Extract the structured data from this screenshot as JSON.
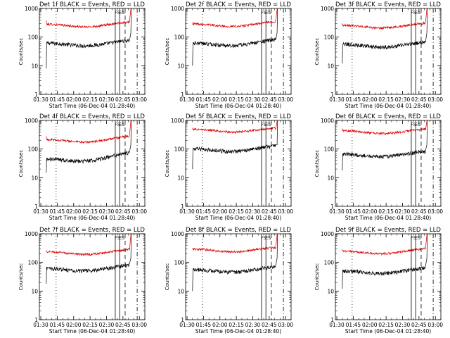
{
  "figure": {
    "background": "#ffffff",
    "events_color": "#000000",
    "lld_color": "#dd0000"
  },
  "chart_data": [
    {
      "type": "line",
      "title": "Det 1f BLACK = Events, RED = LLD",
      "xlabel": "Start Time (06-Dec-04 01:28:40)",
      "ylabel": "Counts/sec",
      "yscale": "log",
      "ylim": [
        1,
        1000
      ],
      "y_ticks": [
        "1",
        "10",
        "100",
        "1000"
      ],
      "x_ticks": [
        "01:30",
        "01:45",
        "02:00",
        "02:15",
        "02:30",
        "02:45",
        "03:00"
      ],
      "x_ticks_minutes": [
        90,
        105,
        120,
        135,
        150,
        165,
        180
      ],
      "xlim_minutes": [
        88.7,
        185
      ],
      "start_minutes": 95,
      "series": [
        {
          "name": "Events",
          "color": "black",
          "start_value": 8,
          "base": 55,
          "end": 70
        },
        {
          "name": "LLD",
          "color": "red",
          "start_value": 380,
          "base": 250,
          "end": 310
        }
      ],
      "markers": [
        {
          "style": "dotted",
          "minute": 104
        },
        {
          "style": "solid",
          "minute": 158
        },
        {
          "style": "solid",
          "minute": 162
        },
        {
          "style": "dashed",
          "minute": 167
        },
        {
          "style": "dashdot",
          "minute": 178
        }
      ],
      "annotations": [
        {
          "text": "FS",
          "minute": 160
        },
        {
          "text": "ES",
          "minute": 164
        }
      ]
    },
    {
      "type": "line",
      "title": "Det 2f BLACK = Events, RED = LLD",
      "xlabel": "Start Time (06-Dec-04 01:28:40)",
      "ylabel": "Counts/sec",
      "yscale": "log",
      "ylim": [
        1,
        1000
      ],
      "y_ticks": [
        "1",
        "10",
        "100",
        "1000"
      ],
      "x_ticks": [
        "01:30",
        "01:45",
        "02:00",
        "02:15",
        "02:30",
        "02:45",
        "03:00"
      ],
      "x_ticks_minutes": [
        90,
        105,
        120,
        135,
        150,
        165,
        180
      ],
      "xlim_minutes": [
        88.7,
        185
      ],
      "start_minutes": 95,
      "series": [
        {
          "name": "Events",
          "color": "black",
          "start_value": 10,
          "base": 55,
          "end": 75
        },
        {
          "name": "LLD",
          "color": "red",
          "start_value": 330,
          "base": 260,
          "end": 320
        }
      ],
      "markers": [
        {
          "style": "dotted",
          "minute": 104
        },
        {
          "style": "solid",
          "minute": 158
        },
        {
          "style": "solid",
          "minute": 162
        },
        {
          "style": "dashed",
          "minute": 167
        },
        {
          "style": "dashdot",
          "minute": 178
        }
      ],
      "annotations": [
        {
          "text": "FS",
          "minute": 160
        },
        {
          "text": "ES",
          "minute": 164
        }
      ]
    },
    {
      "type": "line",
      "title": "Det 3f BLACK = Events, RED = LLD",
      "xlabel": "Start Time (06-Dec-04 01:28:40)",
      "ylabel": "Counts/sec",
      "yscale": "log",
      "ylim": [
        1,
        1000
      ],
      "y_ticks": [
        "1",
        "10",
        "100",
        "1000"
      ],
      "x_ticks": [
        "01:30",
        "01:45",
        "02:00",
        "02:15",
        "02:30",
        "02:45",
        "03:00"
      ],
      "x_ticks_minutes": [
        90,
        105,
        120,
        135,
        150,
        165,
        180
      ],
      "xlim_minutes": [
        88.7,
        185
      ],
      "start_minutes": 95,
      "series": [
        {
          "name": "Events",
          "color": "black",
          "start_value": 12,
          "base": 50,
          "end": 60
        },
        {
          "name": "LLD",
          "color": "red",
          "start_value": 300,
          "base": 230,
          "end": 280
        }
      ],
      "markers": [
        {
          "style": "dotted",
          "minute": 104
        },
        {
          "style": "solid",
          "minute": 158
        },
        {
          "style": "solid",
          "minute": 162
        },
        {
          "style": "dashed",
          "minute": 167
        },
        {
          "style": "dashdot",
          "minute": 178
        }
      ],
      "annotations": [
        {
          "text": "FS",
          "minute": 160
        },
        {
          "text": "ES",
          "minute": 164
        }
      ]
    },
    {
      "type": "line",
      "title": "Det 4f BLACK = Events, RED = LLD",
      "xlabel": "Start Time (06-Dec-04 01:28:40)",
      "ylabel": "Counts/sec",
      "yscale": "log",
      "ylim": [
        1,
        1000
      ],
      "y_ticks": [
        "1",
        "10",
        "100",
        "1000"
      ],
      "x_ticks": [
        "01:30",
        "01:45",
        "02:00",
        "02:15",
        "02:30",
        "02:45",
        "03:00"
      ],
      "x_ticks_minutes": [
        90,
        105,
        120,
        135,
        150,
        165,
        180
      ],
      "xlim_minutes": [
        88.7,
        185
      ],
      "start_minutes": 95,
      "series": [
        {
          "name": "Events",
          "color": "black",
          "start_value": 15,
          "base": 40,
          "end": 70
        },
        {
          "name": "LLD",
          "color": "red",
          "start_value": 280,
          "base": 190,
          "end": 260
        }
      ],
      "markers": [
        {
          "style": "dotted",
          "minute": 104
        },
        {
          "style": "solid",
          "minute": 158
        },
        {
          "style": "solid",
          "minute": 162
        },
        {
          "style": "dashed",
          "minute": 167
        },
        {
          "style": "dashdot",
          "minute": 178
        }
      ],
      "annotations": [
        {
          "text": "FS",
          "minute": 160
        },
        {
          "text": "ES",
          "minute": 164
        }
      ]
    },
    {
      "type": "line",
      "title": "Det 5f BLACK = Events, RED = LLD",
      "xlabel": "Start Time (06-Dec-04 01:28:40)",
      "ylabel": "Counts/sec",
      "yscale": "log",
      "ylim": [
        1,
        1000
      ],
      "y_ticks": [
        "1",
        "10",
        "100",
        "1000"
      ],
      "x_ticks": [
        "01:30",
        "01:45",
        "02:00",
        "02:15",
        "02:30",
        "02:45",
        "03:00"
      ],
      "x_ticks_minutes": [
        90,
        105,
        120,
        135,
        150,
        165,
        180
      ],
      "xlim_minutes": [
        88.7,
        185
      ],
      "start_minutes": 95,
      "series": [
        {
          "name": "Events",
          "color": "black",
          "start_value": 20,
          "base": 90,
          "end": 120
        },
        {
          "name": "LLD",
          "color": "red",
          "start_value": 550,
          "base": 440,
          "end": 480
        }
      ],
      "markers": [
        {
          "style": "dotted",
          "minute": 104
        },
        {
          "style": "solid",
          "minute": 158
        },
        {
          "style": "solid",
          "minute": 162
        },
        {
          "style": "dashed",
          "minute": 167
        },
        {
          "style": "dashdot",
          "minute": 178
        }
      ],
      "annotations": [
        {
          "text": "FS",
          "minute": 160
        },
        {
          "text": "ES",
          "minute": 164
        }
      ]
    },
    {
      "type": "line",
      "title": "Det 6f BLACK = Events, RED = LLD",
      "xlabel": "Start Time (06-Dec-04 01:28:40)",
      "ylabel": "Counts/sec",
      "yscale": "log",
      "ylim": [
        1,
        1000
      ],
      "y_ticks": [
        "1",
        "10",
        "100",
        "1000"
      ],
      "x_ticks": [
        "01:30",
        "01:45",
        "02:00",
        "02:15",
        "02:30",
        "02:45",
        "03:00"
      ],
      "x_ticks_minutes": [
        90,
        105,
        120,
        135,
        150,
        165,
        180
      ],
      "xlim_minutes": [
        88.7,
        185
      ],
      "start_minutes": 95,
      "series": [
        {
          "name": "Events",
          "color": "black",
          "start_value": 18,
          "base": 60,
          "end": 75
        },
        {
          "name": "LLD",
          "color": "red",
          "start_value": 520,
          "base": 390,
          "end": 450
        }
      ],
      "markers": [
        {
          "style": "dotted",
          "minute": 104
        },
        {
          "style": "solid",
          "minute": 158
        },
        {
          "style": "solid",
          "minute": 162
        },
        {
          "style": "dashed",
          "minute": 167
        },
        {
          "style": "dashdot",
          "minute": 178
        }
      ],
      "annotations": [
        {
          "text": "FS",
          "minute": 160
        },
        {
          "text": "ES",
          "minute": 164
        }
      ]
    },
    {
      "type": "line",
      "title": "Det 7f BLACK = Events, RED = LLD",
      "xlabel": "Start Time (06-Dec-04 01:28:40)",
      "ylabel": "Counts/sec",
      "yscale": "log",
      "ylim": [
        1,
        1000
      ],
      "y_ticks": [
        "1",
        "10",
        "100",
        "1000"
      ],
      "x_ticks": [
        "01:30",
        "01:45",
        "02:00",
        "02:15",
        "02:30",
        "02:45",
        "03:00"
      ],
      "x_ticks_minutes": [
        90,
        105,
        120,
        135,
        150,
        165,
        180
      ],
      "xlim_minutes": [
        88.7,
        185
      ],
      "start_minutes": 95,
      "series": [
        {
          "name": "Events",
          "color": "black",
          "start_value": 18,
          "base": 55,
          "end": 75
        },
        {
          "name": "LLD",
          "color": "red",
          "start_value": 240,
          "base": 210,
          "end": 260
        }
      ],
      "markers": [
        {
          "style": "dotted",
          "minute": 104
        },
        {
          "style": "solid",
          "minute": 158
        },
        {
          "style": "solid",
          "minute": 162
        },
        {
          "style": "dashed",
          "minute": 167
        },
        {
          "style": "dashdot",
          "minute": 178
        }
      ],
      "annotations": [
        {
          "text": "FS",
          "minute": 160
        },
        {
          "text": "ES",
          "minute": 164
        }
      ]
    },
    {
      "type": "line",
      "title": "Det 8f BLACK = Events, RED = LLD",
      "xlabel": "Start Time (06-Dec-04 01:28:40)",
      "ylabel": "Counts/sec",
      "yscale": "log",
      "ylim": [
        1,
        1000
      ],
      "y_ticks": [
        "1",
        "10",
        "100",
        "1000"
      ],
      "x_ticks": [
        "01:30",
        "01:45",
        "02:00",
        "02:15",
        "02:30",
        "02:45",
        "03:00"
      ],
      "x_ticks_minutes": [
        90,
        105,
        120,
        135,
        150,
        165,
        180
      ],
      "xlim_minutes": [
        88.7,
        185
      ],
      "start_minutes": 95,
      "series": [
        {
          "name": "Events",
          "color": "black",
          "start_value": 10,
          "base": 50,
          "end": 65
        },
        {
          "name": "LLD",
          "color": "red",
          "start_value": 320,
          "base": 260,
          "end": 300
        }
      ],
      "markers": [
        {
          "style": "dotted",
          "minute": 104
        },
        {
          "style": "solid",
          "minute": 158
        },
        {
          "style": "solid",
          "minute": 162
        },
        {
          "style": "dashed",
          "minute": 167
        },
        {
          "style": "dashdot",
          "minute": 178
        }
      ],
      "annotations": [
        {
          "text": "FS",
          "minute": 160
        },
        {
          "text": "ES",
          "minute": 164
        }
      ]
    },
    {
      "type": "line",
      "title": "Det 9f BLACK = Events, RED = LLD",
      "xlabel": "Start Time (06-Dec-04 01:28:40)",
      "ylabel": "Counts/sec",
      "yscale": "log",
      "ylim": [
        1,
        1000
      ],
      "y_ticks": [
        "1",
        "10",
        "100",
        "1000"
      ],
      "x_ticks": [
        "01:30",
        "01:45",
        "02:00",
        "02:15",
        "02:30",
        "02:45",
        "03:00"
      ],
      "x_ticks_minutes": [
        90,
        105,
        120,
        135,
        150,
        165,
        180
      ],
      "xlim_minutes": [
        88.7,
        185
      ],
      "start_minutes": 95,
      "series": [
        {
          "name": "Events",
          "color": "black",
          "start_value": 12,
          "base": 45,
          "end": 60
        },
        {
          "name": "LLD",
          "color": "red",
          "start_value": 280,
          "base": 220,
          "end": 280
        }
      ],
      "markers": [
        {
          "style": "dotted",
          "minute": 104
        },
        {
          "style": "solid",
          "minute": 158
        },
        {
          "style": "solid",
          "minute": 162
        },
        {
          "style": "dashed",
          "minute": 167
        },
        {
          "style": "dashdot",
          "minute": 178
        }
      ],
      "annotations": [
        {
          "text": "FS",
          "minute": 160
        },
        {
          "text": "ES",
          "minute": 164
        }
      ]
    }
  ]
}
